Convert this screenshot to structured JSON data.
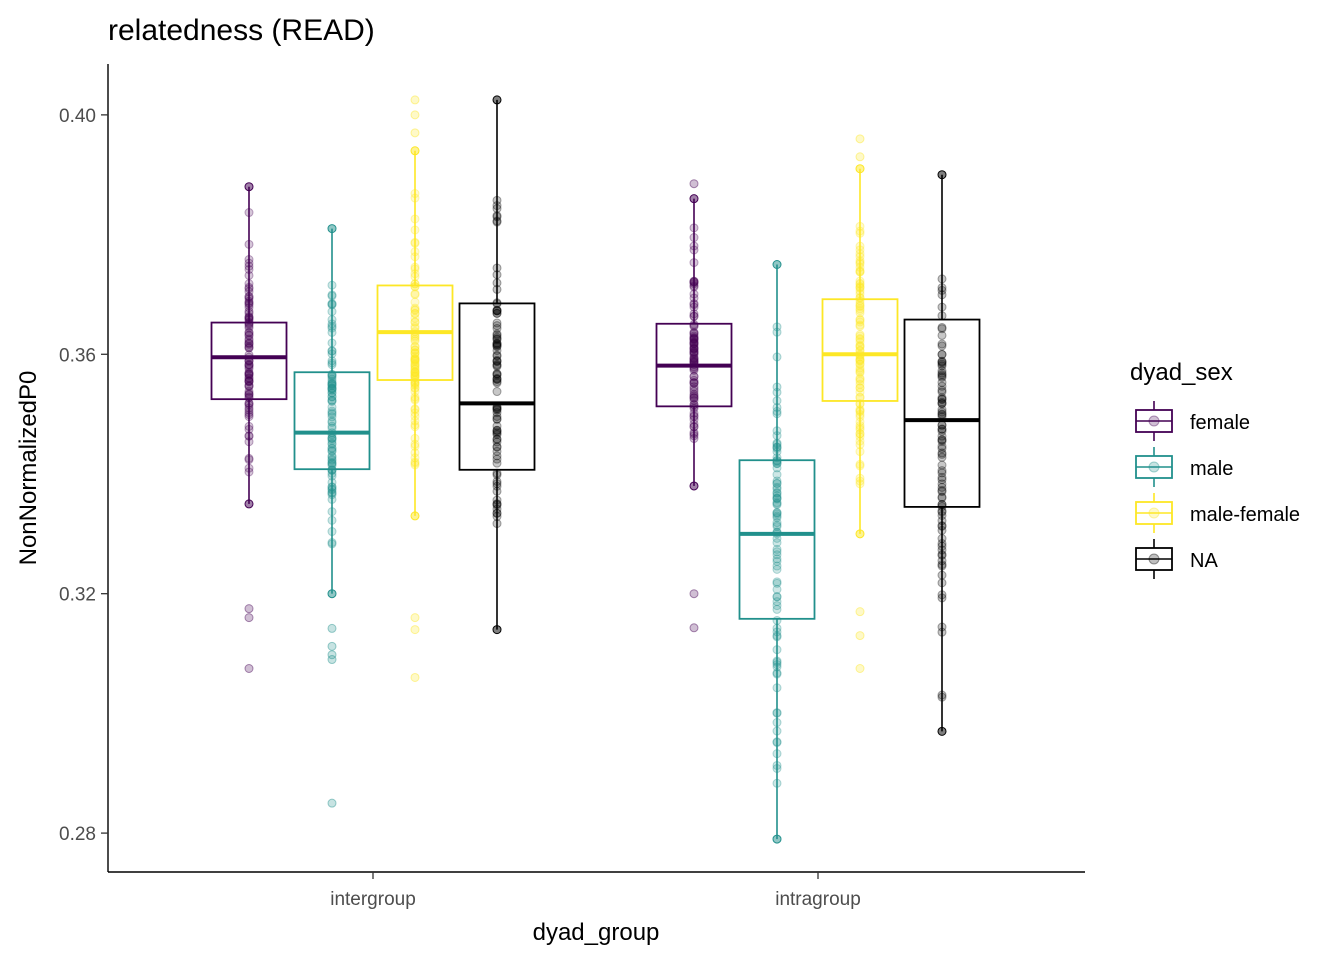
{
  "chart_data": {
    "type": "box",
    "title": "relatedness (READ)",
    "xlabel": "dyad_group",
    "ylabel": "NonNormalizedP0",
    "ylim": [
      0.2735,
      0.4085
    ],
    "yticks": [
      0.28,
      0.32,
      0.36,
      0.4
    ],
    "ytick_labels": [
      "0.28",
      "0.32",
      "0.36",
      "0.40"
    ],
    "categories": [
      "intergroup",
      "intragroup"
    ],
    "grid": false,
    "legend": {
      "title": "dyad_sex",
      "position": "right"
    },
    "series": [
      {
        "name": "female",
        "color": "#440154",
        "boxes": [
          {
            "q1": 0.3525,
            "median": 0.3595,
            "q3": 0.3653,
            "whisker_low": 0.335,
            "whisker_high": 0.388,
            "outliers": [
              0.3175,
              0.316,
              0.3075
            ]
          },
          {
            "q1": 0.3513,
            "median": 0.3581,
            "q3": 0.3651,
            "whisker_low": 0.338,
            "whisker_high": 0.386,
            "outliers": [
              0.3885,
              0.32,
              0.3143
            ]
          }
        ]
      },
      {
        "name": "male",
        "color": "#21908C",
        "boxes": [
          {
            "q1": 0.3408,
            "median": 0.3469,
            "q3": 0.357,
            "whisker_low": 0.32,
            "whisker_high": 0.381,
            "outliers": [
              0.3142,
              0.3112,
              0.3098,
              0.309,
              0.285
            ]
          },
          {
            "q1": 0.3158,
            "median": 0.33,
            "q3": 0.3423,
            "whisker_low": 0.279,
            "whisker_high": 0.375,
            "outliers": []
          }
        ]
      },
      {
        "name": "male-female",
        "color": "#FDE725",
        "boxes": [
          {
            "q1": 0.3557,
            "median": 0.3637,
            "q3": 0.3715,
            "whisker_low": 0.333,
            "whisker_high": 0.394,
            "outliers": [
              0.4025,
              0.4,
              0.397,
              0.316,
              0.314,
              0.306
            ]
          },
          {
            "q1": 0.3522,
            "median": 0.36,
            "q3": 0.3692,
            "whisker_low": 0.33,
            "whisker_high": 0.391,
            "outliers": [
              0.396,
              0.393,
              0.317,
              0.313,
              0.3075
            ]
          }
        ]
      },
      {
        "name": "NA",
        "color": "#000000",
        "boxes": [
          {
            "q1": 0.3407,
            "median": 0.3518,
            "q3": 0.3685,
            "whisker_low": 0.314,
            "whisker_high": 0.4025,
            "outliers": []
          },
          {
            "q1": 0.3345,
            "median": 0.349,
            "q3": 0.3658,
            "whisker_low": 0.297,
            "whisker_high": 0.39,
            "outliers": []
          }
        ]
      }
    ]
  }
}
